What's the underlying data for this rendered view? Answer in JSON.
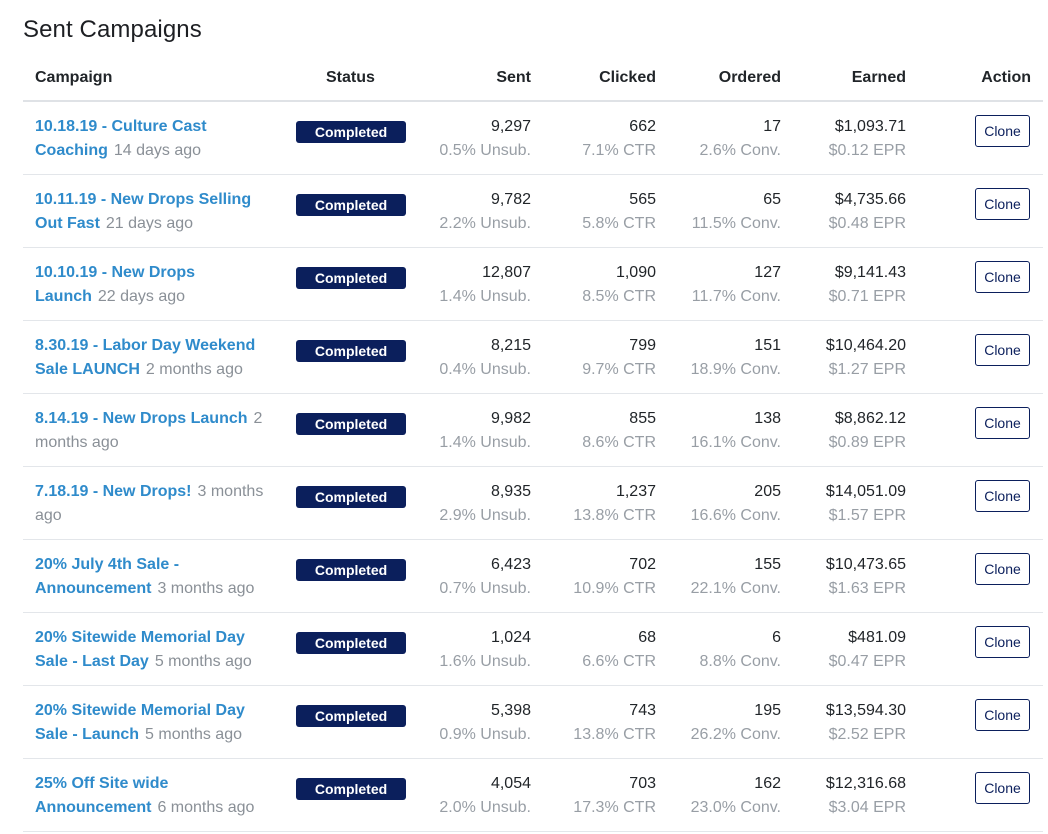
{
  "page": {
    "title": "Sent Campaigns"
  },
  "table": {
    "headers": {
      "campaign": "Campaign",
      "status": "Status",
      "sent": "Sent",
      "clicked": "Clicked",
      "ordered": "Ordered",
      "earned": "Earned",
      "action": "Action"
    },
    "rows": [
      {
        "name": "10.18.19 - Culture Cast Coaching",
        "age": "14 days ago",
        "status": "Completed",
        "sent": "9,297",
        "unsub": "0.5% Unsub.",
        "clicked": "662",
        "ctr": "7.1% CTR",
        "ordered": "17",
        "conv": "2.6% Conv.",
        "earned": "$1,093.71",
        "epr": "$0.12 EPR",
        "action": "Clone"
      },
      {
        "name": "10.11.19 - New Drops Selling Out Fast",
        "age": "21 days ago",
        "status": "Completed",
        "sent": "9,782",
        "unsub": "2.2% Unsub.",
        "clicked": "565",
        "ctr": "5.8% CTR",
        "ordered": "65",
        "conv": "11.5% Conv.",
        "earned": "$4,735.66",
        "epr": "$0.48 EPR",
        "action": "Clone"
      },
      {
        "name": "10.10.19 - New Drops Launch",
        "age": "22 days ago",
        "status": "Completed",
        "sent": "12,807",
        "unsub": "1.4% Unsub.",
        "clicked": "1,090",
        "ctr": "8.5% CTR",
        "ordered": "127",
        "conv": "11.7% Conv.",
        "earned": "$9,141.43",
        "epr": "$0.71 EPR",
        "action": "Clone"
      },
      {
        "name": "8.30.19 - Labor Day Weekend Sale LAUNCH",
        "age": "2 months ago",
        "status": "Completed",
        "sent": "8,215",
        "unsub": "0.4% Unsub.",
        "clicked": "799",
        "ctr": "9.7% CTR",
        "ordered": "151",
        "conv": "18.9% Conv.",
        "earned": "$10,464.20",
        "epr": "$1.27 EPR",
        "action": "Clone"
      },
      {
        "name": "8.14.19 - New Drops Launch",
        "age": "2 months ago",
        "status": "Completed",
        "sent": "9,982",
        "unsub": "1.4% Unsub.",
        "clicked": "855",
        "ctr": "8.6% CTR",
        "ordered": "138",
        "conv": "16.1% Conv.",
        "earned": "$8,862.12",
        "epr": "$0.89 EPR",
        "action": "Clone"
      },
      {
        "name": "7.18.19 - New Drops!",
        "age": "3 months ago",
        "status": "Completed",
        "sent": "8,935",
        "unsub": "2.9% Unsub.",
        "clicked": "1,237",
        "ctr": "13.8% CTR",
        "ordered": "205",
        "conv": "16.6% Conv.",
        "earned": "$14,051.09",
        "epr": "$1.57 EPR",
        "action": "Clone"
      },
      {
        "name": "20% July 4th Sale - Announcement",
        "age": "3 months ago",
        "status": "Completed",
        "sent": "6,423",
        "unsub": "0.7% Unsub.",
        "clicked": "702",
        "ctr": "10.9% CTR",
        "ordered": "155",
        "conv": "22.1% Conv.",
        "earned": "$10,473.65",
        "epr": "$1.63 EPR",
        "action": "Clone"
      },
      {
        "name": "20% Sitewide Memorial Day Sale - Last Day",
        "age": "5 months ago",
        "status": "Completed",
        "sent": "1,024",
        "unsub": "1.6% Unsub.",
        "clicked": "68",
        "ctr": "6.6% CTR",
        "ordered": "6",
        "conv": "8.8% Conv.",
        "earned": "$481.09",
        "epr": "$0.47 EPR",
        "action": "Clone"
      },
      {
        "name": "20% Sitewide Memorial Day Sale - Launch",
        "age": "5 months ago",
        "status": "Completed",
        "sent": "5,398",
        "unsub": "0.9% Unsub.",
        "clicked": "743",
        "ctr": "13.8% CTR",
        "ordered": "195",
        "conv": "26.2% Conv.",
        "earned": "$13,594.30",
        "epr": "$2.52 EPR",
        "action": "Clone"
      },
      {
        "name": "25% Off Site wide Announcement",
        "age": "6 months ago",
        "status": "Completed",
        "sent": "4,054",
        "unsub": "2.0% Unsub.",
        "clicked": "703",
        "ctr": "17.3% CTR",
        "ordered": "162",
        "conv": "23.0% Conv.",
        "earned": "$12,316.68",
        "epr": "$3.04 EPR",
        "action": "Clone"
      }
    ]
  },
  "colors": {
    "link": "#2f8bcb",
    "badge_bg": "#0b1f5c",
    "badge_text": "#ffffff",
    "muted_text": "#989ea5",
    "border": "#dfe2e6"
  }
}
